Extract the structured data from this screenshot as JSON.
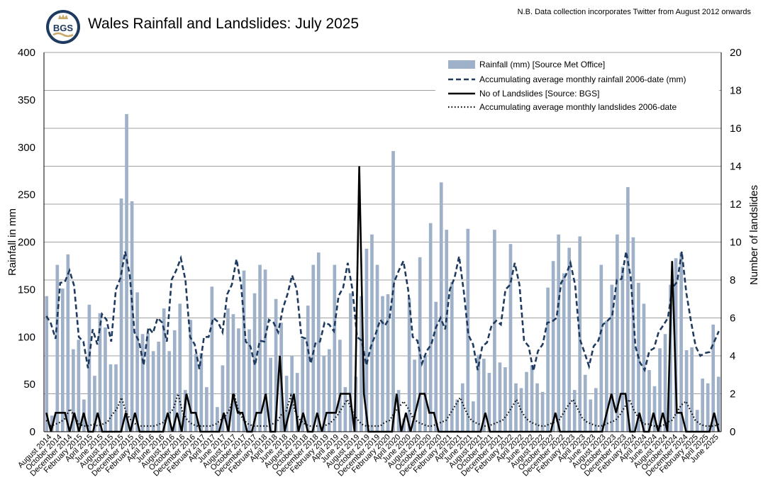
{
  "header": {
    "logo_text": "BGS",
    "title": "Wales Rainfall and Landslides: July 2025",
    "note": "N.B. Data collection incorporates Twitter from August 2012 onwards"
  },
  "colors": {
    "bar": "#9fb1c8",
    "dashed": "#1f3a5f",
    "landslides": "#000000",
    "avg_landslides": "#000000",
    "logo_ring": "#1f3a5f",
    "logo_gold": "#c9a86a",
    "grid": "#808080"
  },
  "chart_data": {
    "type": "bar",
    "title": "Wales Rainfall and Landslides: July 2025",
    "ylabel": "Rainfall in mm",
    "y2label": "Number of landslides",
    "ylim": [
      0,
      400
    ],
    "y2lim": [
      0,
      20
    ],
    "yticks": [
      0,
      50,
      100,
      150,
      200,
      250,
      300,
      350,
      400
    ],
    "y2ticks": [
      0,
      2,
      4,
      6,
      8,
      10,
      12,
      14,
      16,
      18,
      20
    ],
    "grid": true,
    "legend_position": "top-right",
    "start_month": "2014-07",
    "x_tick_labels": [
      "August 2014",
      "October 2014",
      "December 2014",
      "February 2015",
      "April 2015",
      "June 2015",
      "August 2015",
      "October 2015",
      "December 2015",
      "February 2016",
      "April 2016",
      "June 2016",
      "August 2016",
      "October 2016",
      "December 2016",
      "February 2017",
      "April 2017",
      "June 2017",
      "August 2017",
      "October 2017",
      "December 2017",
      "February 2018",
      "April 2018",
      "June 2018",
      "August 2018",
      "October 2018",
      "December 2018",
      "February 2019",
      "April 2019",
      "June 2019",
      "August 2019",
      "October 2019",
      "December 2019",
      "February 2020",
      "April 2020",
      "June 2020",
      "August 2020",
      "October 2020",
      "December 2020",
      "February 2021",
      "April 2021",
      "June 2021",
      "August 2021",
      "October 2021",
      "December 2021",
      "February 2022",
      "April 2022",
      "June 2022",
      "August 2022",
      "October 2022",
      "December 2022",
      "February 2023",
      "April 2023",
      "June 2023",
      "August 2023",
      "October 2023",
      "December 2023",
      "February 2024",
      "April 2024",
      "June 2024",
      "August 2024",
      "October 2024",
      "December 2024",
      "February 2025",
      "April 2025",
      "June 2025"
    ],
    "series": [
      {
        "name": "Rainfall (mm) [Source Met Office]",
        "kind": "bar",
        "axis": "left",
        "values": [
          143,
          17,
          176,
          151,
          187,
          87,
          97,
          34,
          134,
          59,
          125,
          110,
          71,
          71,
          246,
          335,
          243,
          147,
          103,
          104,
          85,
          95,
          130,
          85,
          107,
          135,
          44,
          118,
          82,
          83,
          47,
          153,
          26,
          70,
          130,
          124,
          109,
          170,
          108,
          146,
          176,
          171,
          78,
          140,
          115,
          59,
          80,
          62,
          98,
          133,
          176,
          189,
          80,
          87,
          176,
          97,
          47,
          146,
          58,
          143,
          193,
          208,
          176,
          143,
          145,
          296,
          44,
          14,
          141,
          76,
          184,
          80,
          220,
          137,
          263,
          213,
          158,
          34,
          51,
          214,
          32,
          81,
          77,
          62,
          213,
          73,
          68,
          198,
          51,
          46,
          63,
          70,
          51,
          42,
          152,
          180,
          208,
          167,
          194,
          44,
          206,
          60,
          34,
          46,
          176,
          117,
          155,
          208,
          174,
          258,
          205,
          157,
          135,
          65,
          48,
          88,
          103,
          155,
          183,
          189,
          86,
          89,
          23,
          56,
          51,
          113,
          58
        ]
      },
      {
        "name": "Accumulating average monthly rainfall 2006-date (mm)",
        "kind": "line-dashed",
        "axis": "left",
        "values": [
          122,
          114,
          98,
          157,
          158,
          170,
          154,
          100,
          95,
          67,
          108,
          92,
          124,
          118,
          95,
          150,
          162,
          190,
          165,
          105,
          95,
          70,
          110,
          104,
          120,
          115,
          95,
          160,
          170,
          183,
          160,
          100,
          92,
          66,
          100,
          100,
          120,
          116,
          105,
          145,
          155,
          182,
          155,
          95,
          90,
          70,
          96,
          95,
          118,
          115,
          105,
          130,
          145,
          165,
          150,
          100,
          98,
          72,
          93,
          95,
          115,
          113,
          106,
          143,
          152,
          178,
          150,
          100,
          96,
          70,
          90,
          103,
          118,
          112,
          120,
          158,
          170,
          180,
          150,
          100,
          96,
          72,
          85,
          92,
          110,
          120,
          108,
          150,
          162,
          185,
          148,
          102,
          92,
          65,
          90,
          94,
          112,
          117,
          113,
          150,
          155,
          178,
          155,
          96,
          90,
          64,
          85,
          92,
          115,
          116,
          120,
          157,
          165,
          178,
          155,
          98,
          84,
          69,
          90,
          96,
          113,
          117,
          122,
          160,
          161,
          190,
          163,
          90,
          73,
          65,
          85,
          88,
          105,
          112,
          120,
          152,
          158,
          190,
          146,
          116,
          90,
          80,
          83,
          84,
          95,
          106
        ]
      },
      {
        "name": "No of Landslides [Source: BGS]",
        "kind": "line-solid",
        "axis": "right",
        "values": [
          1,
          0,
          1,
          1,
          1,
          0,
          1,
          0,
          1,
          0,
          0,
          1,
          0,
          0,
          0,
          0,
          0,
          1,
          0,
          1,
          0,
          0,
          0,
          0,
          0,
          0,
          1,
          0,
          1,
          0,
          2,
          1,
          1,
          0,
          0,
          0,
          0,
          0,
          1,
          0,
          2,
          1,
          1,
          0,
          0,
          1,
          1,
          2,
          0,
          0,
          4,
          0,
          1,
          2,
          0,
          1,
          0,
          0,
          1,
          0,
          1,
          1,
          1,
          2,
          2,
          2,
          0,
          14,
          2,
          0,
          0,
          0,
          0,
          0,
          0,
          2,
          0,
          1,
          0,
          1,
          2,
          2,
          1,
          1,
          0,
          0,
          0,
          0,
          0,
          0,
          0,
          0,
          0,
          0,
          1,
          0,
          0,
          0,
          0,
          0,
          0,
          0,
          0,
          0,
          0,
          0,
          0,
          0,
          0,
          1,
          0,
          0,
          0,
          0,
          0,
          0,
          0,
          0,
          0,
          0,
          1,
          2,
          1,
          2,
          2,
          0,
          0,
          1,
          0,
          0,
          1,
          0,
          1,
          0,
          9,
          1,
          1,
          0,
          0,
          0,
          0,
          0,
          0,
          1,
          0
        ]
      },
      {
        "name": "Accumulating average monthly landslides 2006-date",
        "kind": "line-dotted",
        "axis": "right",
        "values": [
          0.6,
          0.3,
          0.4,
          0.5,
          0.7,
          1.2,
          0.8,
          0.4,
          0.3,
          0.3,
          0.4,
          0.3,
          0.4,
          0.5,
          0.9,
          1.2,
          1.8,
          1.0,
          0.6,
          0.4,
          0.3,
          0.3,
          0.3,
          0.3,
          0.4,
          0.5,
          0.9,
          1.2,
          2.0,
          1.0,
          0.6,
          0.4,
          0.3,
          0.3,
          0.3,
          0.3,
          0.4,
          0.6,
          0.8,
          1.2,
          1.9,
          1.0,
          0.6,
          0.4,
          0.3,
          0.3,
          0.3,
          0.3,
          0.4,
          0.5,
          0.9,
          1.1,
          1.9,
          1.0,
          0.6,
          0.4,
          0.3,
          0.3,
          0.3,
          0.3,
          0.4,
          0.6,
          0.9,
          1.3,
          1.7,
          1.1,
          0.7,
          0.4,
          0.3,
          0.3,
          0.3,
          0.3,
          0.5,
          0.6,
          1.0,
          1.3,
          1.6,
          1.2,
          0.7,
          0.5,
          0.4,
          0.3,
          0.3,
          0.4,
          0.5,
          0.6,
          1.0,
          1.4,
          1.8,
          1.2,
          0.7,
          0.5,
          0.4,
          0.3,
          0.3,
          0.4,
          0.5,
          0.6,
          0.9,
          1.3,
          1.7,
          1.1,
          0.7,
          0.5,
          0.4,
          0.3,
          0.3,
          0.4,
          0.5,
          0.6,
          1.0,
          1.4,
          1.7,
          1.2,
          0.7,
          0.5,
          0.4,
          0.3,
          0.3,
          0.4,
          0.5,
          0.6,
          0.9,
          1.3,
          1.7,
          1.1,
          0.7,
          0.4,
          0.4,
          0.3,
          0.3,
          0.3,
          0.5,
          0.6,
          1.0,
          1.4,
          1.6,
          1.1,
          0.6,
          0.4,
          0.3,
          0.3,
          0.3,
          0.4
        ]
      }
    ]
  }
}
